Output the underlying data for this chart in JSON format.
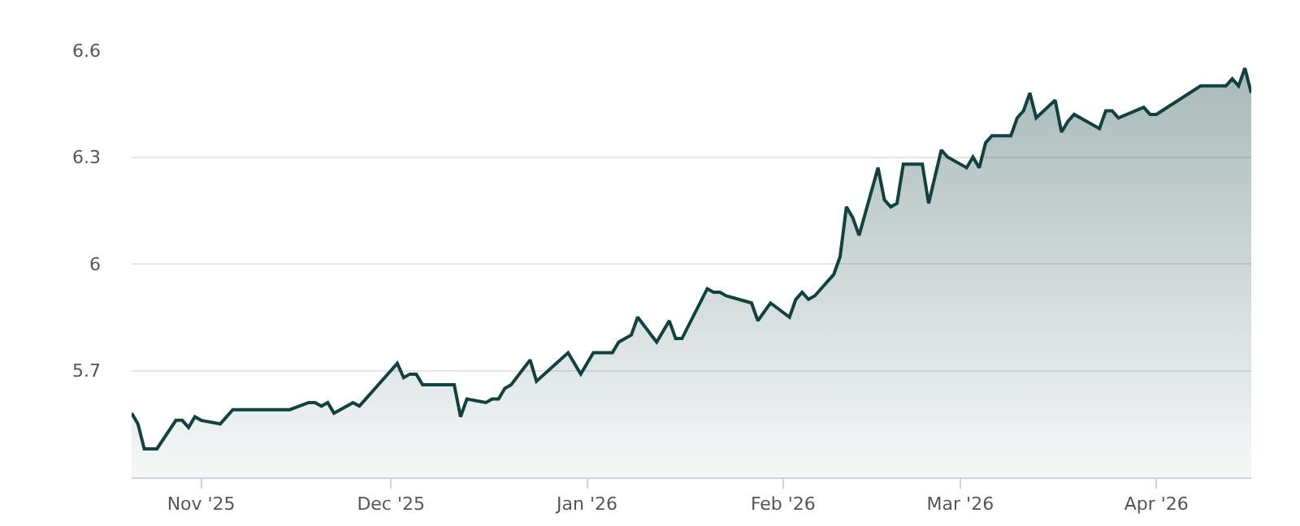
{
  "chart_data": {
    "type": "area",
    "x": [
      "2025-10-21",
      "2025-10-22",
      "2025-10-23",
      "2025-10-25",
      "2025-10-28",
      "2025-10-29",
      "2025-10-30",
      "2025-10-31",
      "2025-11-01",
      "2025-11-04",
      "2025-11-06",
      "2025-11-15",
      "2025-11-18",
      "2025-11-19",
      "2025-11-20",
      "2025-11-21",
      "2025-11-22",
      "2025-11-25",
      "2025-11-26",
      "2025-11-27",
      "2025-11-29",
      "2025-12-02",
      "2025-12-03",
      "2025-12-04",
      "2025-12-05",
      "2025-12-06",
      "2025-12-11",
      "2025-12-12",
      "2025-12-13",
      "2025-12-16",
      "2025-12-17",
      "2025-12-18",
      "2025-12-19",
      "2025-12-20",
      "2025-12-23",
      "2025-12-24",
      "2025-12-29",
      "2025-12-31",
      "2026-01-02",
      "2026-01-05",
      "2026-01-06",
      "2026-01-08",
      "2026-01-09",
      "2026-01-12",
      "2026-01-14",
      "2026-01-15",
      "2026-01-16",
      "2026-01-20",
      "2026-01-21",
      "2026-01-22",
      "2026-01-23",
      "2026-01-27",
      "2026-01-28",
      "2026-01-30",
      "2026-02-02",
      "2026-02-03",
      "2026-02-04",
      "2026-02-05",
      "2026-02-06",
      "2026-02-09",
      "2026-02-10",
      "2026-02-11",
      "2026-02-12",
      "2026-02-13",
      "2026-02-16",
      "2026-02-17",
      "2026-02-18",
      "2026-02-19",
      "2026-02-20",
      "2026-02-23",
      "2026-02-24",
      "2026-02-26",
      "2026-02-27",
      "2026-03-02",
      "2026-03-03",
      "2026-03-04",
      "2026-03-05",
      "2026-03-06",
      "2026-03-09",
      "2026-03-10",
      "2026-03-11",
      "2026-03-12",
      "2026-03-13",
      "2026-03-16",
      "2026-03-17",
      "2026-03-18",
      "2026-03-19",
      "2026-03-23",
      "2026-03-24",
      "2026-03-25",
      "2026-03-26",
      "2026-03-30",
      "2026-03-31",
      "2026-04-01",
      "2026-04-08",
      "2026-04-12",
      "2026-04-13",
      "2026-04-14",
      "2026-04-15",
      "2026-04-16"
    ],
    "series": [
      {
        "color": "#12423f",
        "values": [
          5.58,
          5.55,
          5.48,
          5.48,
          5.56,
          5.56,
          5.54,
          5.57,
          5.56,
          5.55,
          5.59,
          5.59,
          5.61,
          5.61,
          5.6,
          5.61,
          5.58,
          5.61,
          5.6,
          5.62,
          5.66,
          5.72,
          5.68,
          5.69,
          5.69,
          5.66,
          5.66,
          5.57,
          5.62,
          5.61,
          5.62,
          5.62,
          5.65,
          5.66,
          5.73,
          5.67,
          5.75,
          5.69,
          5.75,
          5.75,
          5.78,
          5.8,
          5.85,
          5.78,
          5.84,
          5.79,
          5.79,
          5.93,
          5.92,
          5.92,
          5.91,
          5.89,
          5.84,
          5.89,
          5.85,
          5.9,
          5.92,
          5.9,
          5.91,
          5.97,
          6.02,
          6.16,
          6.13,
          6.08,
          6.27,
          6.18,
          6.16,
          6.17,
          6.28,
          6.28,
          6.17,
          6.32,
          6.3,
          6.27,
          6.3,
          6.27,
          6.34,
          6.36,
          6.36,
          6.41,
          6.43,
          6.48,
          6.41,
          6.46,
          6.37,
          6.4,
          6.42,
          6.38,
          6.43,
          6.43,
          6.41,
          6.44,
          6.42,
          6.42,
          6.5,
          6.5,
          6.52,
          6.5,
          6.55,
          6.48
        ]
      }
    ],
    "xlim": [
      "2025-10-21",
      "2026-04-16"
    ],
    "xticks": [
      {
        "value": "2025-11-01",
        "label": "Nov '25"
      },
      {
        "value": "2025-12-01",
        "label": "Dec '25"
      },
      {
        "value": "2026-01-01",
        "label": "Jan '26"
      },
      {
        "value": "2026-02-01",
        "label": "Feb '26"
      },
      {
        "value": "2026-03-01",
        "label": "Mar '26"
      },
      {
        "value": "2026-04-01",
        "label": "Apr '26"
      }
    ],
    "ylim": [
      5.4,
      6.6
    ],
    "yticks": [
      5.7,
      6,
      6.3,
      6.6
    ],
    "grid": "y",
    "marker": "none",
    "line_style": "solid"
  }
}
